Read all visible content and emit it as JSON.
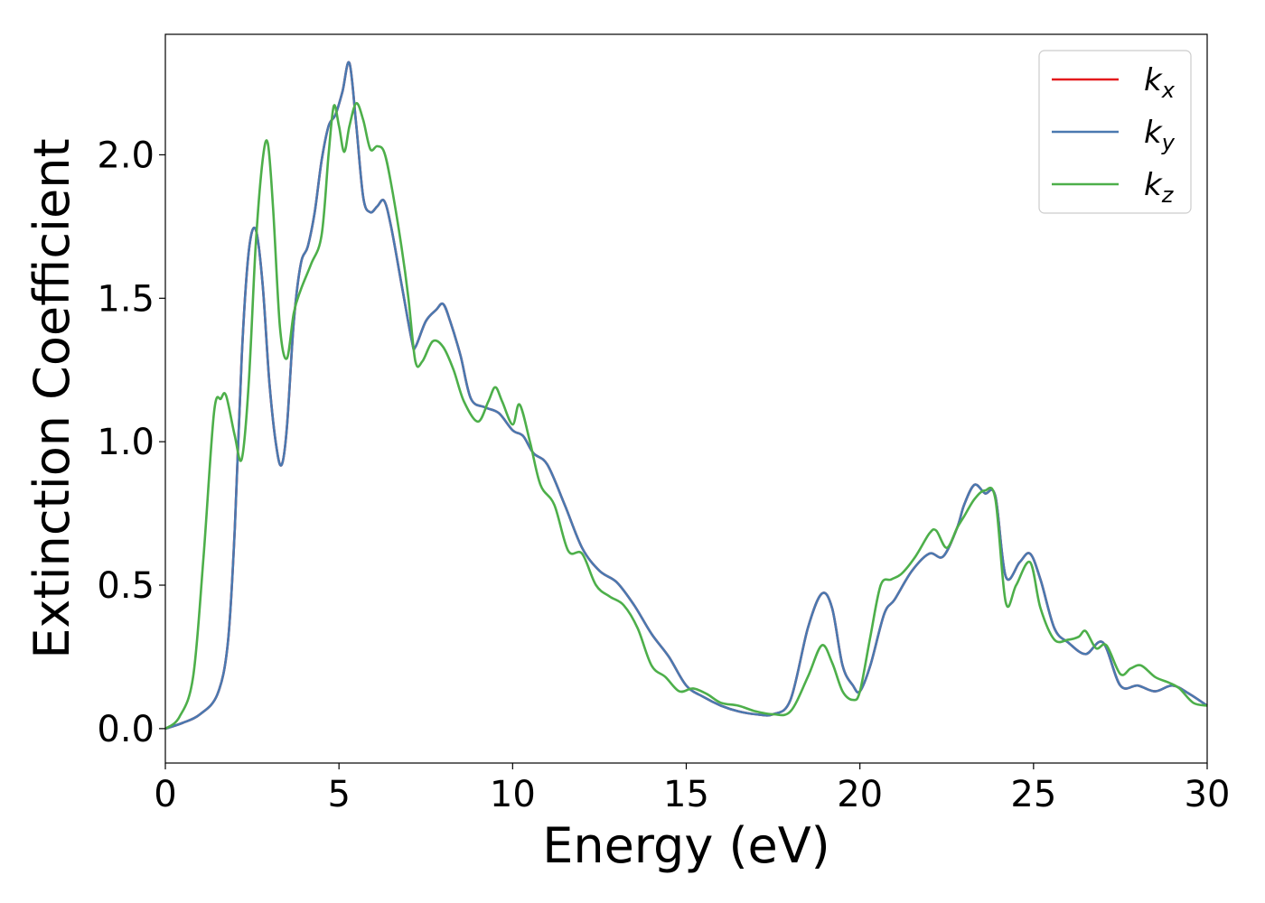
{
  "chart_data": {
    "type": "line",
    "title": "",
    "xlabel": "Energy (eV)",
    "ylabel": "Extinction Coefficient",
    "xlim": [
      0,
      30
    ],
    "ylim": [
      -0.12,
      2.42
    ],
    "xticks": [
      0,
      5,
      10,
      15,
      20,
      25,
      30
    ],
    "xtick_labels": [
      "0",
      "5",
      "10",
      "15",
      "20",
      "25",
      "30"
    ],
    "yticks": [
      0.0,
      0.5,
      1.0,
      1.5,
      2.0
    ],
    "ytick_labels": [
      "0.0",
      "0.5",
      "1.0",
      "1.5",
      "2.0"
    ],
    "grid": false,
    "legend_position": "top-right",
    "series": [
      {
        "name": "k",
        "subscript": "x",
        "color": "#e41a1c",
        "x": [
          0,
          0.5,
          1.0,
          1.5,
          1.8,
          2.0,
          2.2,
          2.4,
          2.6,
          2.8,
          3.0,
          3.2,
          3.35,
          3.5,
          3.7,
          3.9,
          4.1,
          4.3,
          4.5,
          4.7,
          4.9,
          5.1,
          5.3,
          5.5,
          5.7,
          5.9,
          6.1,
          6.3,
          6.5,
          6.8,
          7.1,
          7.2,
          7.5,
          7.8,
          8.0,
          8.2,
          8.5,
          8.8,
          9.2,
          9.6,
          10.0,
          10.3,
          10.6,
          11.0,
          11.5,
          12.0,
          12.5,
          13.0,
          13.5,
          14.0,
          14.5,
          15.0,
          15.5,
          16.0,
          16.5,
          17.0,
          17.5,
          18.0,
          18.5,
          18.9,
          19.2,
          19.5,
          19.8,
          20.0,
          20.3,
          20.7,
          21.0,
          21.5,
          22.0,
          22.4,
          22.8,
          23.0,
          23.3,
          23.6,
          23.9,
          24.2,
          24.6,
          24.9,
          25.2,
          25.6,
          26.0,
          26.5,
          27.0,
          27.5,
          28.0,
          28.5,
          29.0,
          29.5,
          30.0
        ],
        "y": [
          0.0,
          0.02,
          0.05,
          0.12,
          0.3,
          0.7,
          1.3,
          1.66,
          1.74,
          1.55,
          1.2,
          0.98,
          0.92,
          1.05,
          1.42,
          1.62,
          1.68,
          1.8,
          1.98,
          2.1,
          2.14,
          2.22,
          2.32,
          2.1,
          1.85,
          1.8,
          1.82,
          1.84,
          1.75,
          1.55,
          1.35,
          1.33,
          1.42,
          1.46,
          1.48,
          1.42,
          1.3,
          1.15,
          1.12,
          1.1,
          1.04,
          1.02,
          0.96,
          0.92,
          0.78,
          0.63,
          0.55,
          0.51,
          0.43,
          0.33,
          0.25,
          0.15,
          0.11,
          0.08,
          0.06,
          0.05,
          0.05,
          0.1,
          0.35,
          0.47,
          0.42,
          0.22,
          0.15,
          0.13,
          0.22,
          0.4,
          0.45,
          0.55,
          0.61,
          0.6,
          0.7,
          0.78,
          0.85,
          0.82,
          0.81,
          0.53,
          0.58,
          0.61,
          0.52,
          0.35,
          0.3,
          0.26,
          0.3,
          0.15,
          0.15,
          0.13,
          0.15,
          0.12,
          0.08
        ]
      },
      {
        "name": "k",
        "subscript": "y",
        "color": "#4a79b0",
        "x": [
          0,
          0.5,
          1.0,
          1.5,
          1.8,
          2.0,
          2.2,
          2.4,
          2.6,
          2.8,
          3.0,
          3.2,
          3.35,
          3.5,
          3.7,
          3.9,
          4.1,
          4.3,
          4.5,
          4.7,
          4.9,
          5.1,
          5.3,
          5.5,
          5.7,
          5.9,
          6.1,
          6.3,
          6.5,
          6.8,
          7.1,
          7.2,
          7.5,
          7.8,
          8.0,
          8.2,
          8.5,
          8.8,
          9.2,
          9.6,
          10.0,
          10.3,
          10.6,
          11.0,
          11.5,
          12.0,
          12.5,
          13.0,
          13.5,
          14.0,
          14.5,
          15.0,
          15.5,
          16.0,
          16.5,
          17.0,
          17.5,
          18.0,
          18.5,
          18.9,
          19.2,
          19.5,
          19.8,
          20.0,
          20.3,
          20.7,
          21.0,
          21.5,
          22.0,
          22.4,
          22.8,
          23.0,
          23.3,
          23.6,
          23.9,
          24.2,
          24.6,
          24.9,
          25.2,
          25.6,
          26.0,
          26.5,
          27.0,
          27.5,
          28.0,
          28.5,
          29.0,
          29.5,
          30.0
        ],
        "y": [
          0.0,
          0.02,
          0.05,
          0.12,
          0.3,
          0.7,
          1.3,
          1.66,
          1.74,
          1.55,
          1.2,
          0.98,
          0.92,
          1.05,
          1.42,
          1.62,
          1.68,
          1.8,
          1.98,
          2.1,
          2.14,
          2.22,
          2.32,
          2.1,
          1.85,
          1.8,
          1.82,
          1.84,
          1.75,
          1.55,
          1.35,
          1.33,
          1.42,
          1.46,
          1.48,
          1.42,
          1.3,
          1.15,
          1.12,
          1.1,
          1.04,
          1.02,
          0.96,
          0.92,
          0.78,
          0.63,
          0.55,
          0.51,
          0.43,
          0.33,
          0.25,
          0.15,
          0.11,
          0.08,
          0.06,
          0.05,
          0.05,
          0.1,
          0.35,
          0.47,
          0.42,
          0.22,
          0.15,
          0.13,
          0.22,
          0.4,
          0.45,
          0.55,
          0.61,
          0.6,
          0.7,
          0.78,
          0.85,
          0.82,
          0.81,
          0.53,
          0.58,
          0.61,
          0.52,
          0.35,
          0.3,
          0.26,
          0.3,
          0.15,
          0.15,
          0.13,
          0.15,
          0.12,
          0.08
        ]
      },
      {
        "name": "k",
        "subscript": "z",
        "color": "#4daf4a",
        "x": [
          0,
          0.4,
          0.8,
          1.1,
          1.4,
          1.6,
          1.75,
          2.0,
          2.2,
          2.4,
          2.6,
          2.8,
          2.95,
          3.1,
          3.3,
          3.5,
          3.7,
          3.9,
          4.2,
          4.5,
          4.7,
          4.85,
          5.0,
          5.15,
          5.3,
          5.5,
          5.7,
          5.9,
          6.1,
          6.3,
          6.5,
          6.8,
          7.0,
          7.2,
          7.4,
          7.7,
          8.0,
          8.3,
          8.6,
          9.0,
          9.3,
          9.5,
          9.7,
          10.0,
          10.2,
          10.5,
          10.8,
          11.2,
          11.6,
          12.0,
          12.4,
          12.8,
          13.2,
          13.6,
          14.0,
          14.4,
          14.8,
          15.2,
          15.6,
          16.0,
          16.5,
          17.0,
          17.5,
          18.0,
          18.5,
          18.9,
          19.2,
          19.5,
          19.8,
          20.0,
          20.3,
          20.6,
          20.9,
          21.2,
          21.6,
          22.0,
          22.2,
          22.5,
          22.8,
          23.0,
          23.3,
          23.6,
          23.9,
          24.2,
          24.5,
          24.9,
          25.2,
          25.6,
          26.0,
          26.3,
          26.5,
          26.8,
          27.1,
          27.5,
          27.8,
          28.1,
          28.5,
          28.9,
          29.2,
          29.6,
          30.0
        ],
        "y": [
          0.0,
          0.04,
          0.18,
          0.6,
          1.1,
          1.15,
          1.16,
          1.02,
          0.94,
          1.2,
          1.68,
          1.98,
          2.04,
          1.82,
          1.4,
          1.29,
          1.45,
          1.53,
          1.62,
          1.72,
          2.0,
          2.17,
          2.1,
          2.01,
          2.1,
          2.18,
          2.12,
          2.02,
          2.03,
          2.01,
          1.9,
          1.68,
          1.5,
          1.28,
          1.28,
          1.35,
          1.33,
          1.25,
          1.14,
          1.07,
          1.14,
          1.19,
          1.14,
          1.06,
          1.13,
          1.0,
          0.85,
          0.78,
          0.62,
          0.61,
          0.5,
          0.46,
          0.43,
          0.35,
          0.22,
          0.18,
          0.13,
          0.14,
          0.12,
          0.09,
          0.08,
          0.06,
          0.05,
          0.06,
          0.18,
          0.29,
          0.23,
          0.13,
          0.1,
          0.13,
          0.32,
          0.5,
          0.52,
          0.54,
          0.6,
          0.68,
          0.69,
          0.63,
          0.7,
          0.74,
          0.8,
          0.83,
          0.8,
          0.44,
          0.5,
          0.58,
          0.42,
          0.31,
          0.31,
          0.32,
          0.34,
          0.28,
          0.29,
          0.19,
          0.21,
          0.22,
          0.18,
          0.16,
          0.14,
          0.09,
          0.08
        ]
      }
    ]
  }
}
